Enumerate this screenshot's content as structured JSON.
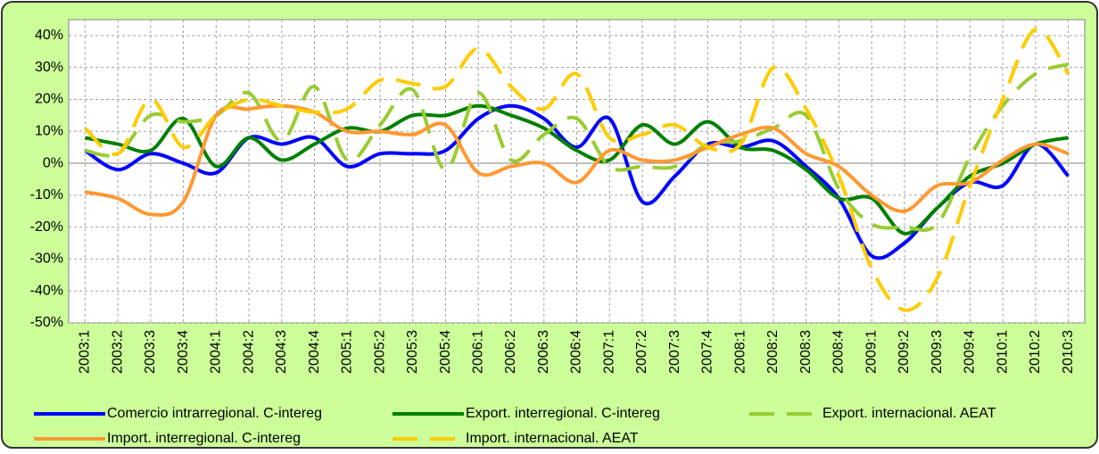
{
  "chart_data": {
    "type": "line",
    "categories": [
      "2003:1",
      "2003:2",
      "2003:3",
      "2003:4",
      "2004:1",
      "2004:2",
      "2004:3",
      "2004:4",
      "2005:1",
      "2005:2",
      "2005:3",
      "2005:4",
      "2006:1",
      "2006:2",
      "2006:3",
      "2006:4",
      "2007:1",
      "2007:2",
      "2007:3",
      "2007:4",
      "2008:1",
      "2008:2",
      "2008:3",
      "2008:4",
      "2009:1",
      "2009:2",
      "2009:3",
      "2009:4",
      "2010:1",
      "2010:2",
      "2010:3"
    ],
    "ylim": [
      -50,
      45
    ],
    "yticks": [
      {
        "value": -50,
        "label": "-50%"
      },
      {
        "value": -40,
        "label": "-40%"
      },
      {
        "value": -30,
        "label": "-30%"
      },
      {
        "value": -20,
        "label": "-20%"
      },
      {
        "value": -10,
        "label": "-10%"
      },
      {
        "value": 0,
        "label": "0%"
      },
      {
        "value": 10,
        "label": "10%"
      },
      {
        "value": 20,
        "label": "20%"
      },
      {
        "value": 30,
        "label": "30%"
      },
      {
        "value": 40,
        "label": "40%"
      }
    ],
    "grid": true,
    "legend": "bottom",
    "series": [
      {
        "name": "Comercio intrarregional. C-intereg",
        "color": "#0000ff",
        "dashed": false,
        "values": [
          4,
          -2,
          3,
          0,
          -3,
          8,
          6,
          8,
          -1,
          3,
          3,
          4,
          14,
          18,
          14,
          5,
          14,
          -12,
          -4,
          6,
          5,
          7,
          -1,
          -11,
          -29,
          -25,
          -14,
          -6,
          -7,
          6,
          -4
        ]
      },
      {
        "name": "Export. interregional. C-intereg",
        "color": "#008000",
        "dashed": false,
        "values": [
          8,
          6,
          4,
          14,
          -1,
          8,
          1,
          6,
          11,
          10,
          15,
          15,
          18,
          15,
          11,
          4,
          1,
          12,
          6,
          13,
          5,
          4,
          -2,
          -11,
          -11,
          -22,
          -14,
          -4,
          0,
          6,
          8
        ]
      },
      {
        "name": "Export. internacional. AEAT",
        "color": "#99cc33",
        "dashed": true,
        "values": [
          4,
          3,
          15,
          13,
          15,
          22,
          7,
          24,
          1,
          12,
          23,
          -2,
          22,
          1,
          9,
          14,
          -1,
          -1,
          -1,
          6,
          7,
          11,
          15,
          -8,
          -19,
          -20,
          -19,
          2,
          18,
          28,
          31
        ]
      },
      {
        "name": "Import. interregional. C-intereg",
        "color": "#ff9933",
        "dashed": false,
        "values": [
          -9,
          -11,
          -16,
          -12,
          15,
          17,
          18,
          16,
          10,
          10,
          9,
          12,
          -3,
          -1,
          0,
          -6,
          4,
          1,
          1,
          5,
          9,
          11,
          3,
          -1,
          -10,
          -15,
          -7,
          -6,
          1,
          6,
          3
        ]
      },
      {
        "name": "Import. internacional. AEAT",
        "color": "#ffcc00",
        "dashed": true,
        "values": [
          11,
          3,
          20,
          5,
          15,
          20,
          18,
          16,
          17,
          26,
          25,
          24,
          36,
          24,
          17,
          28,
          8,
          9,
          12,
          5,
          6,
          30,
          17,
          -4,
          -33,
          -46,
          -36,
          -7,
          20,
          42,
          28
        ]
      }
    ]
  }
}
